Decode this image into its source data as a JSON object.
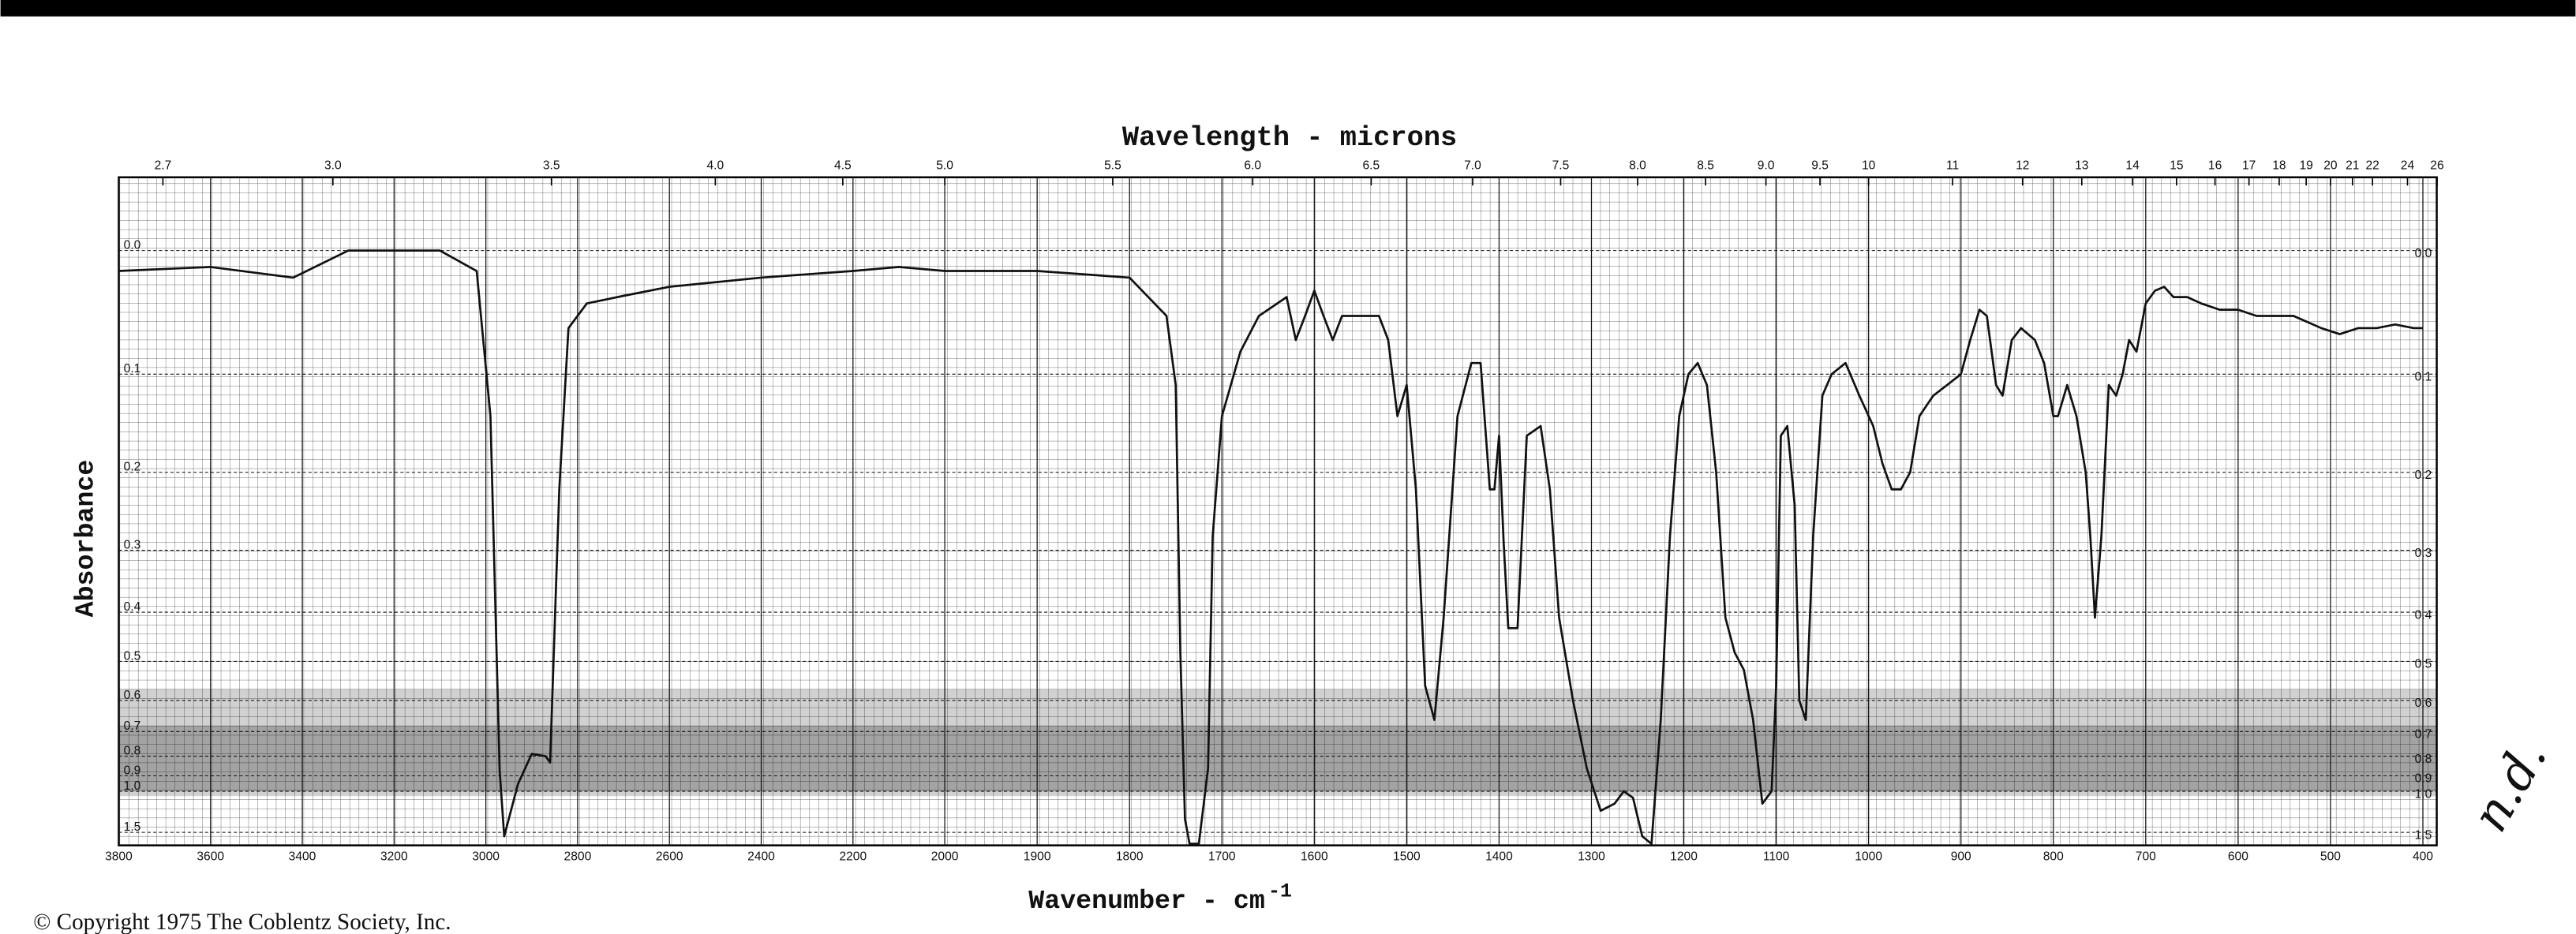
{
  "chart_data": {
    "type": "line",
    "title": "Wavelength - microns",
    "x_label": "Wavenumber - cm",
    "x_label_exponent": "-1",
    "y_label": "Absorbance",
    "copyright": "© Copyright 1975  The Coblentz Society, Inc.",
    "annotation": "n.d.",
    "yscale": "transmittance",
    "xscale_break": 2000,
    "grid": true,
    "xlim": [
      3800,
      385
    ],
    "ylim": [
      -0.05,
      2.0
    ],
    "xticks": [
      3800,
      3600,
      3400,
      3200,
      3000,
      2800,
      2600,
      2400,
      2200,
      2000,
      1900,
      1800,
      1700,
      1600,
      1500,
      1400,
      1300,
      1200,
      1100,
      1000,
      900,
      800,
      700,
      600,
      500,
      400
    ],
    "x2ticks": [
      2.7,
      {
        "value": 3,
        "label": "3.0"
      },
      3.5,
      {
        "value": 4,
        "label": "4.0"
      },
      4.5,
      {
        "value": 5,
        "label": "5.0"
      },
      5.5,
      {
        "value": 6,
        "label": "6.0"
      },
      6.5,
      {
        "value": 7,
        "label": "7.0"
      },
      7.5,
      {
        "value": 8,
        "label": "8.0"
      },
      8.5,
      {
        "value": 9,
        "label": "9.0"
      },
      9.5,
      10,
      11,
      12,
      13,
      14,
      15,
      16,
      17,
      18,
      19,
      20,
      21,
      22,
      24,
      26
    ],
    "yticks": [
      {
        "value": 0,
        "label": "0.0"
      },
      0.1,
      0.2,
      0.3,
      0.4,
      0.5,
      0.6,
      0.7,
      0.8,
      0.9,
      {
        "value": 1,
        "label": "1.0"
      },
      1.5
    ],
    "x": [
      3800,
      3600,
      3420,
      3300,
      3100,
      3020,
      2990,
      2970,
      2960,
      2930,
      2900,
      2870,
      2860,
      2840,
      2820,
      2780,
      2700,
      2600,
      2400,
      2200,
      2100,
      2000,
      1900,
      1800,
      1760,
      1750,
      1745,
      1740,
      1735,
      1725,
      1715,
      1710,
      1700,
      1680,
      1660,
      1640,
      1630,
      1620,
      1610,
      1600,
      1590,
      1580,
      1570,
      1550,
      1530,
      1520,
      1510,
      1500,
      1490,
      1480,
      1470,
      1460,
      1445,
      1430,
      1420,
      1410,
      1405,
      1400,
      1395,
      1390,
      1380,
      1370,
      1355,
      1345,
      1335,
      1320,
      1305,
      1290,
      1275,
      1265,
      1255,
      1245,
      1235,
      1225,
      1215,
      1205,
      1195,
      1185,
      1175,
      1165,
      1155,
      1145,
      1135,
      1125,
      1115,
      1105,
      1100,
      1095,
      1088,
      1080,
      1075,
      1068,
      1060,
      1050,
      1040,
      1025,
      1010,
      995,
      985,
      975,
      965,
      955,
      945,
      930,
      915,
      900,
      890,
      880,
      872,
      862,
      855,
      845,
      835,
      820,
      810,
      800,
      795,
      785,
      775,
      765,
      760,
      755,
      748,
      740,
      732,
      725,
      718,
      710,
      700,
      690,
      680,
      670,
      655,
      640,
      620,
      600,
      580,
      560,
      540,
      510,
      490,
      470,
      450,
      430,
      410,
      400
    ],
    "series": [
      {
        "color": "#111111",
        "values": [
          0.015,
          0.012,
          0.02,
          0,
          0,
          0.015,
          0.14,
          0.87,
          1.6,
          0.95,
          0.79,
          0.8,
          0.83,
          0.22,
          0.06,
          0.04,
          0.034,
          0.027,
          0.02,
          0.015,
          0.012,
          0.015,
          0.015,
          0.02,
          0.05,
          0.11,
          0.48,
          1.27,
          1.9,
          1.9,
          0.86,
          0.28,
          0.14,
          0.08,
          0.05,
          0.04,
          0.035,
          0.07,
          0.05,
          0.03,
          0.05,
          0.07,
          0.05,
          0.05,
          0.05,
          0.07,
          0.14,
          0.11,
          0.22,
          0.56,
          0.66,
          0.41,
          0.14,
          0.09,
          0.09,
          0.22,
          0.22,
          0.16,
          0.29,
          0.43,
          0.43,
          0.16,
          0.15,
          0.22,
          0.41,
          0.6,
          0.86,
          1.17,
          1.1,
          1.0,
          1.05,
          1.6,
          1.9,
          0.66,
          0.28,
          0.14,
          0.1,
          0.09,
          0.11,
          0.2,
          0.41,
          0.48,
          0.52,
          0.66,
          1.1,
          1.0,
          0.56,
          0.16,
          0.15,
          0.24,
          0.6,
          0.66,
          0.28,
          0.12,
          0.1,
          0.09,
          0.12,
          0.15,
          0.19,
          0.22,
          0.22,
          0.2,
          0.14,
          0.12,
          0.11,
          0.1,
          0.07,
          0.045,
          0.05,
          0.11,
          0.12,
          0.07,
          0.06,
          0.07,
          0.09,
          0.14,
          0.14,
          0.11,
          0.14,
          0.2,
          0.28,
          0.41,
          0.28,
          0.11,
          0.12,
          0.1,
          0.07,
          0.08,
          0.04,
          0.03,
          0.027,
          0.035,
          0.035,
          0.04,
          0.045,
          0.045,
          0.05,
          0.05,
          0.05,
          0.06,
          0.065,
          0.06,
          0.06,
          0.057,
          0.06,
          0.06
        ]
      }
    ]
  }
}
